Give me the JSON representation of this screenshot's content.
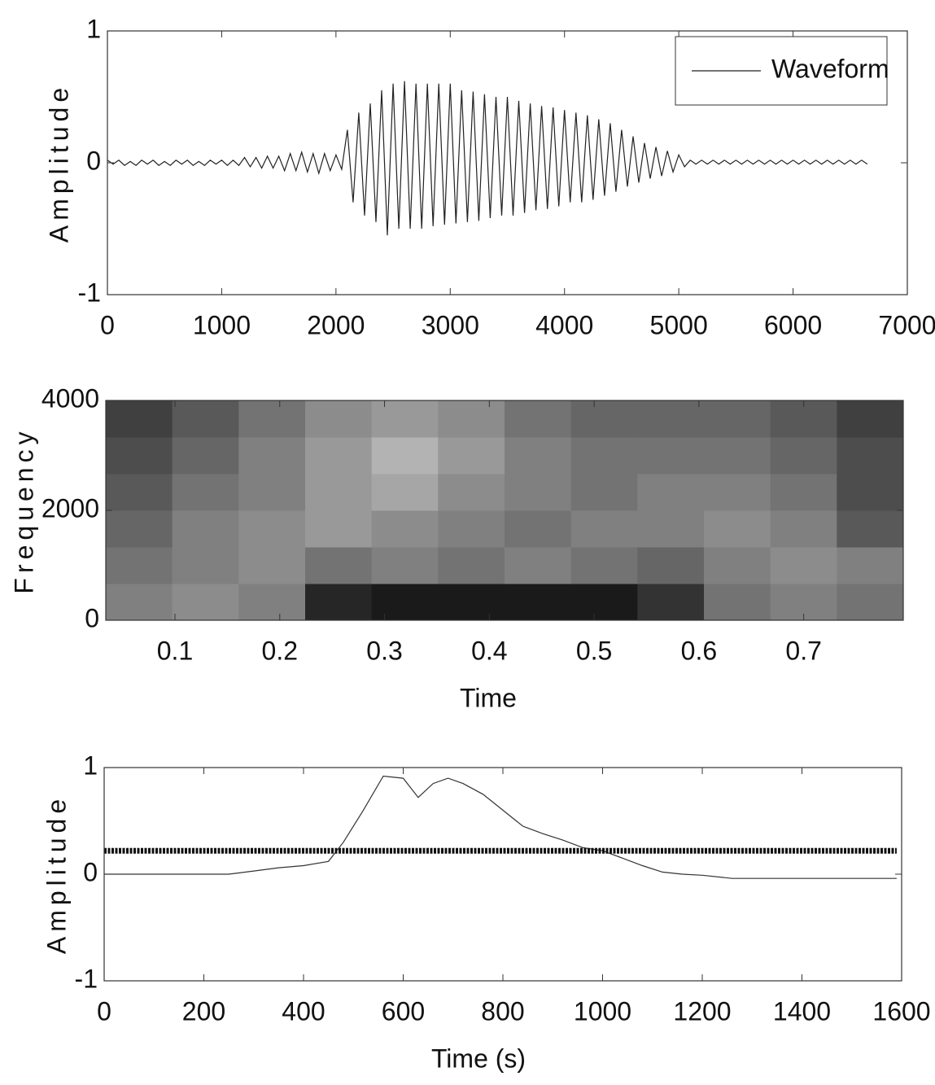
{
  "chart_data": [
    {
      "type": "line",
      "ylabel": "Amplitude",
      "xlim": [
        0,
        7000
      ],
      "xticks": [
        0,
        1000,
        2000,
        3000,
        4000,
        5000,
        6000,
        7000
      ],
      "ylim": [
        -1,
        1
      ],
      "yticks": [
        -1,
        0,
        1
      ],
      "legend": "upper right",
      "series": [
        {
          "name": "Waveform",
          "color": "#222222",
          "x": [
            0,
            50,
            100,
            150,
            200,
            250,
            300,
            350,
            400,
            450,
            500,
            550,
            600,
            650,
            700,
            750,
            800,
            850,
            900,
            950,
            1000,
            1050,
            1100,
            1150,
            1200,
            1250,
            1300,
            1350,
            1400,
            1450,
            1500,
            1550,
            1600,
            1650,
            1700,
            1750,
            1800,
            1850,
            1900,
            1950,
            2000,
            2050,
            2100,
            2150,
            2200,
            2250,
            2300,
            2350,
            2400,
            2450,
            2500,
            2550,
            2600,
            2650,
            2700,
            2750,
            2800,
            2850,
            2900,
            2950,
            3000,
            3050,
            3100,
            3150,
            3200,
            3250,
            3300,
            3350,
            3400,
            3450,
            3500,
            3550,
            3600,
            3650,
            3700,
            3750,
            3800,
            3850,
            3900,
            3950,
            4000,
            4050,
            4100,
            4150,
            4200,
            4250,
            4300,
            4350,
            4400,
            4450,
            4500,
            4550,
            4600,
            4650,
            4700,
            4750,
            4800,
            4850,
            4900,
            4950,
            5000,
            5050,
            5100,
            5150,
            5200,
            5250,
            5300,
            5350,
            5400,
            5450,
            5500,
            5550,
            5600,
            5650,
            5700,
            5750,
            5800,
            5850,
            5900,
            5950,
            6000,
            6050,
            6100,
            6150,
            6200,
            6250,
            6300,
            6350,
            6400,
            6450,
            6500,
            6550,
            6600,
            6650
          ],
          "values": [
            0.02,
            -0.01,
            0.02,
            -0.02,
            0.01,
            -0.02,
            0.02,
            -0.01,
            0.02,
            -0.02,
            0.01,
            -0.02,
            0.02,
            -0.01,
            0.02,
            -0.02,
            0.01,
            -0.02,
            0.02,
            -0.01,
            0.02,
            -0.02,
            0.02,
            -0.02,
            0.04,
            -0.03,
            0.04,
            -0.04,
            0.05,
            -0.04,
            0.05,
            -0.06,
            0.07,
            -0.06,
            0.08,
            -0.07,
            0.07,
            -0.08,
            0.07,
            -0.06,
            0.06,
            -0.05,
            0.25,
            -0.3,
            0.38,
            -0.4,
            0.45,
            -0.45,
            0.55,
            -0.55,
            0.6,
            -0.5,
            0.62,
            -0.5,
            0.6,
            -0.5,
            0.6,
            -0.48,
            0.6,
            -0.47,
            0.6,
            -0.46,
            0.55,
            -0.45,
            0.54,
            -0.44,
            0.52,
            -0.42,
            0.5,
            -0.4,
            0.5,
            -0.4,
            0.47,
            -0.38,
            0.45,
            -0.36,
            0.43,
            -0.35,
            0.42,
            -0.33,
            0.4,
            -0.3,
            0.38,
            -0.3,
            0.36,
            -0.28,
            0.33,
            -0.25,
            0.3,
            -0.22,
            0.25,
            -0.18,
            0.2,
            -0.15,
            0.15,
            -0.12,
            0.12,
            -0.1,
            0.09,
            -0.07,
            0.06,
            -0.03,
            0.02,
            -0.01,
            0.02,
            -0.01,
            0.02,
            -0.01,
            0.02,
            -0.01,
            0.02,
            -0.01,
            0.02,
            -0.01,
            0.02,
            -0.01,
            0.02,
            -0.01,
            0.02,
            -0.01,
            0.02,
            -0.01,
            0.02,
            -0.01,
            0.02,
            -0.01,
            0.02,
            -0.01,
            0.02,
            -0.01,
            0.02,
            -0.01,
            0.02,
            -0.01
          ]
        }
      ]
    },
    {
      "type": "heatmap",
      "xlabel": "Time",
      "ylabel": "Frequency",
      "xlim": [
        0.034,
        0.795
      ],
      "xticks": [
        0.1,
        0.2,
        0.3,
        0.4,
        0.5,
        0.6,
        0.7
      ],
      "ylim": [
        0,
        4000
      ],
      "yticks": [
        0,
        2000,
        4000
      ],
      "colormap": "gray",
      "z": [
        [
          0.5,
          0.55,
          0.5,
          0.15,
          0.1,
          0.1,
          0.1,
          0.1,
          0.2,
          0.45,
          0.5,
          0.45
        ],
        [
          0.45,
          0.5,
          0.55,
          0.45,
          0.5,
          0.45,
          0.5,
          0.45,
          0.4,
          0.5,
          0.55,
          0.5
        ],
        [
          0.4,
          0.5,
          0.55,
          0.6,
          0.55,
          0.5,
          0.45,
          0.5,
          0.5,
          0.55,
          0.5,
          0.35
        ],
        [
          0.35,
          0.45,
          0.5,
          0.6,
          0.65,
          0.55,
          0.5,
          0.45,
          0.5,
          0.5,
          0.45,
          0.3
        ],
        [
          0.3,
          0.4,
          0.5,
          0.6,
          0.7,
          0.6,
          0.5,
          0.45,
          0.45,
          0.45,
          0.4,
          0.3
        ],
        [
          0.25,
          0.35,
          0.45,
          0.55,
          0.6,
          0.55,
          0.45,
          0.4,
          0.4,
          0.4,
          0.35,
          0.25
        ]
      ]
    },
    {
      "type": "line",
      "xlabel": "Time (s)",
      "ylabel": "Amplitude",
      "xlim": [
        0,
        1600
      ],
      "xticks": [
        0,
        200,
        400,
        600,
        800,
        1000,
        1200,
        1400,
        1600
      ],
      "ylim": [
        -1,
        1
      ],
      "yticks": [
        -1,
        0,
        1
      ],
      "series": [
        {
          "color": "#333333",
          "x": [
            0,
            250,
            300,
            350,
            400,
            450,
            480,
            520,
            560,
            600,
            630,
            660,
            690,
            720,
            760,
            800,
            840,
            880,
            920,
            960,
            1000,
            1040,
            1080,
            1120,
            1160,
            1200,
            1260,
            1590
          ],
          "values": [
            0,
            0,
            0.03,
            0.06,
            0.08,
            0.12,
            0.3,
            0.6,
            0.92,
            0.9,
            0.72,
            0.85,
            0.9,
            0.85,
            0.75,
            0.6,
            0.45,
            0.38,
            0.32,
            0.25,
            0.22,
            0.15,
            0.08,
            0.02,
            0,
            -0.01,
            -0.04,
            -0.04
          ]
        },
        {
          "color": "#111111",
          "x": [
            0,
            1590
          ],
          "values": [
            0.22,
            0.22
          ]
        }
      ]
    }
  ]
}
